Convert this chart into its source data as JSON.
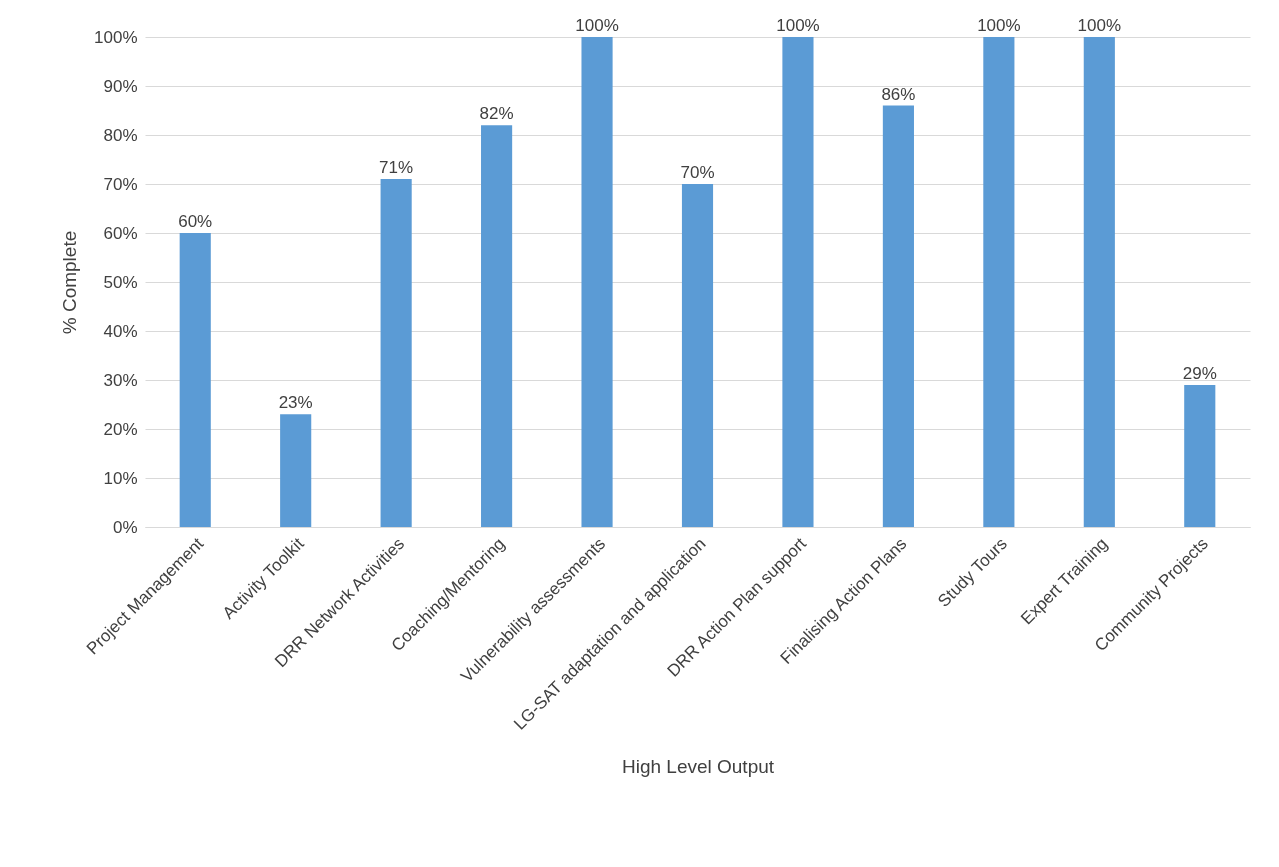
{
  "chart_data": {
    "type": "bar",
    "xlabel": "High Level Output",
    "ylabel": "% Complete",
    "categories": [
      "Project Management",
      "Activity Toolkit",
      "DRR Network Activities",
      "Coaching/Mentoring",
      "Vulnerability assessments",
      "LG-SAT adaptation and application",
      "DRR Action Plan support",
      "Finalising Action Plans",
      "Study Tours",
      "Expert Training",
      "Community Projects"
    ],
    "values": [
      60,
      23,
      71,
      82,
      100,
      70,
      100,
      86,
      100,
      100,
      29
    ],
    "value_labels": [
      "60%",
      "23%",
      "71%",
      "82%",
      "100%",
      "70%",
      "100%",
      "86%",
      "100%",
      "100%",
      "29%"
    ],
    "color": "#5b9bd5",
    "ylim": [
      0,
      100
    ],
    "yticks": [
      {
        "value": 0,
        "label": "0%"
      },
      {
        "value": 10,
        "label": "10%"
      },
      {
        "value": 20,
        "label": "20%"
      },
      {
        "value": 30,
        "label": "30%"
      },
      {
        "value": 40,
        "label": "40%"
      },
      {
        "value": 50,
        "label": "50%"
      },
      {
        "value": 60,
        "label": "60%"
      },
      {
        "value": 70,
        "label": "70%"
      },
      {
        "value": 80,
        "label": "80%"
      },
      {
        "value": 90,
        "label": "90%"
      },
      {
        "value": 100,
        "label": "100%"
      }
    ],
    "grid": "y"
  }
}
